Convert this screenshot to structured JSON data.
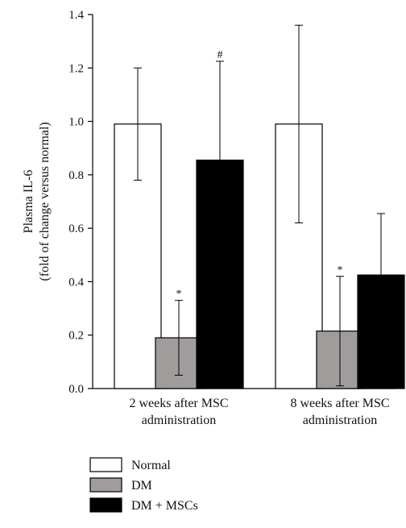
{
  "chart_data": {
    "type": "bar",
    "categories": [
      [
        "2 weeks after MSC",
        "administration"
      ],
      [
        "8 weeks after MSC",
        "administration"
      ]
    ],
    "ylabel": [
      "Plasma IL-6",
      "(fold of change versus normal)"
    ],
    "ylim": [
      0,
      1.4
    ],
    "yticks": [
      "0.0",
      "0.2",
      "0.4",
      "0.6",
      "0.8",
      "1.0",
      "1.2",
      "1.4"
    ],
    "grid": false,
    "legend_position": "bottom-left",
    "series": [
      {
        "name": "Normal",
        "color": "#ffffff",
        "values": [
          0.99,
          0.99
        ],
        "error": [
          0.21,
          0.37
        ],
        "marks": [
          "",
          ""
        ]
      },
      {
        "name": "DM",
        "color": "#a09c9c",
        "values": [
          0.19,
          0.215
        ],
        "error": [
          0.14,
          0.205
        ],
        "marks": [
          "*",
          "*"
        ]
      },
      {
        "name": "DM + MSCs",
        "color": "#000000",
        "values": [
          0.855,
          0.425
        ],
        "error": [
          0.37,
          0.23
        ],
        "marks": [
          "#",
          ""
        ]
      }
    ]
  }
}
